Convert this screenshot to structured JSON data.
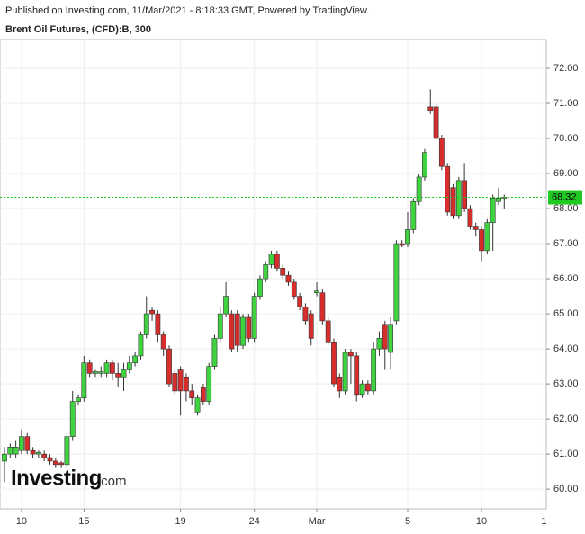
{
  "chart_data": {
    "type": "candlestick",
    "attribution": "Published on Investing.com, 11/Mar/2021 - 8:18:33 GMT, Powered by TradingView.",
    "title": "Brent Oil Futures, (CFD):B, 300",
    "watermark": "Investing",
    "watermark_suffix": ".com",
    "categories": [
      null,
      null,
      null,
      "10",
      null,
      null,
      null,
      null,
      null,
      null,
      null,
      null,
      null,
      null,
      "15",
      null,
      null,
      null,
      null,
      null,
      null,
      null,
      null,
      null,
      null,
      null,
      null,
      null,
      null,
      null,
      null,
      "19",
      null,
      null,
      null,
      null,
      null,
      null,
      null,
      null,
      null,
      null,
      null,
      null,
      "24",
      null,
      null,
      null,
      null,
      null,
      null,
      null,
      null,
      null,
      null,
      "Mar",
      null,
      null,
      null,
      null,
      null,
      null,
      null,
      null,
      null,
      null,
      null,
      null,
      null,
      null,
      null,
      "5",
      null,
      null,
      null,
      null,
      null,
      null,
      null,
      null,
      null,
      null,
      null,
      null,
      "10",
      null,
      null,
      null,
      null,
      null,
      null,
      null,
      null,
      null,
      null,
      "1"
    ],
    "open": [
      60.8,
      61.0,
      61.0,
      61.1,
      61.5,
      61.1,
      61.0,
      61.0,
      60.9,
      60.8,
      60.75,
      60.7,
      61.5,
      62.5,
      62.6,
      63.6,
      63.3,
      63.3,
      63.3,
      63.6,
      63.3,
      63.2,
      63.4,
      63.6,
      63.8,
      64.4,
      65.1,
      65.0,
      64.4,
      64.0,
      63.3,
      63.4,
      63.2,
      62.8,
      62.2,
      62.9,
      62.5,
      63.5,
      64.3,
      65.0,
      65.0,
      65.0,
      64.1,
      64.9,
      64.3,
      65.5,
      66.0,
      66.4,
      66.7,
      66.3,
      66.1,
      65.9,
      65.5,
      65.2,
      65.0,
      65.6,
      65.6,
      64.8,
      64.2,
      63.2,
      62.8,
      63.9,
      63.8,
      62.7,
      63.0,
      62.8,
      64.0,
      64.7,
      63.9,
      64.8,
      67.0,
      67.0,
      67.4,
      68.2,
      68.9,
      70.9,
      70.9,
      70.0,
      69.2,
      68.6,
      67.8,
      68.8,
      68.0,
      67.5,
      67.4,
      66.8,
      67.6,
      68.2,
      68.3,
      null,
      null,
      null,
      null,
      null,
      null,
      null
    ],
    "high": [
      61.2,
      61.3,
      61.4,
      61.7,
      61.6,
      61.2,
      61.1,
      61.1,
      61.0,
      60.9,
      60.8,
      61.6,
      62.8,
      62.7,
      63.8,
      63.7,
      63.4,
      63.5,
      63.7,
      63.7,
      63.6,
      63.6,
      63.8,
      63.9,
      64.5,
      65.5,
      65.2,
      65.1,
      64.5,
      64.1,
      63.4,
      63.5,
      63.3,
      63.0,
      62.7,
      63.0,
      63.6,
      64.4,
      65.2,
      65.9,
      65.1,
      65.1,
      65.0,
      65.0,
      65.6,
      66.1,
      66.5,
      66.8,
      66.8,
      66.4,
      66.2,
      66.0,
      65.6,
      65.3,
      65.1,
      65.9,
      65.7,
      64.9,
      64.3,
      63.3,
      64.0,
      64.0,
      63.9,
      63.1,
      63.1,
      64.2,
      64.5,
      64.8,
      64.9,
      67.1,
      67.1,
      67.9,
      68.3,
      69.0,
      69.7,
      71.4,
      71.0,
      70.1,
      69.3,
      68.7,
      68.9,
      69.3,
      68.1,
      67.6,
      67.5,
      67.7,
      68.4,
      68.6,
      68.4,
      null,
      null,
      null,
      null,
      null,
      null,
      null
    ],
    "low": [
      60.2,
      60.9,
      60.9,
      61.0,
      61.0,
      60.9,
      60.9,
      60.8,
      60.7,
      60.6,
      60.6,
      60.6,
      61.4,
      62.4,
      62.5,
      63.2,
      63.2,
      63.2,
      63.2,
      63.1,
      62.9,
      62.8,
      63.3,
      63.5,
      63.7,
      64.3,
      64.8,
      64.2,
      63.8,
      62.9,
      62.7,
      62.1,
      62.5,
      62.4,
      62.1,
      62.4,
      62.4,
      63.4,
      64.2,
      64.9,
      63.9,
      63.9,
      64.0,
      64.2,
      64.2,
      65.4,
      65.9,
      66.3,
      66.2,
      66.0,
      65.8,
      65.4,
      65.1,
      64.7,
      64.1,
      65.5,
      64.7,
      64.1,
      62.9,
      62.6,
      62.7,
      63.0,
      62.5,
      62.6,
      62.7,
      62.7,
      63.8,
      63.4,
      63.4,
      64.7,
      66.9,
      66.9,
      67.3,
      68.1,
      68.8,
      70.7,
      69.9,
      69.1,
      67.8,
      67.7,
      67.7,
      67.9,
      67.4,
      67.2,
      66.5,
      66.7,
      66.8,
      68.1,
      68.0,
      null,
      null,
      null,
      null,
      null,
      null,
      null
    ],
    "close": [
      61.0,
      61.2,
      61.2,
      61.5,
      61.1,
      61.0,
      61.05,
      60.9,
      60.8,
      60.7,
      60.7,
      61.5,
      62.5,
      62.6,
      63.6,
      63.3,
      63.35,
      63.35,
      63.6,
      63.3,
      63.2,
      63.4,
      63.6,
      63.8,
      64.4,
      65.0,
      65.0,
      64.4,
      64.0,
      63.0,
      62.8,
      62.8,
      62.8,
      62.6,
      62.6,
      62.5,
      63.5,
      64.3,
      65.0,
      65.5,
      64.0,
      64.1,
      64.9,
      64.3,
      65.5,
      66.0,
      66.4,
      66.7,
      66.3,
      66.1,
      65.9,
      65.5,
      65.2,
      64.8,
      64.3,
      65.65,
      64.8,
      64.2,
      63.0,
      62.8,
      63.9,
      63.8,
      62.7,
      63.0,
      62.8,
      64.0,
      64.3,
      64.0,
      64.7,
      67.0,
      66.95,
      67.4,
      68.2,
      68.9,
      69.6,
      70.8,
      70.0,
      69.2,
      67.9,
      67.8,
      68.8,
      68.0,
      67.5,
      67.4,
      66.8,
      67.6,
      68.3,
      68.3,
      68.32,
      null,
      null,
      null,
      null,
      null,
      null,
      null
    ],
    "up_color": "#3fd43f",
    "down_color": "#d62d2d",
    "last_price": 68.32,
    "last_price_color": "#22c922",
    "ylim": [
      59.44,
      72.82
    ],
    "yticks": [
      {
        "value": 60,
        "label": "60.00"
      },
      {
        "value": 61,
        "label": "61.00"
      },
      {
        "value": 62,
        "label": "62.00"
      },
      {
        "value": 63,
        "label": "63.00"
      },
      {
        "value": 64,
        "label": "64.00"
      },
      {
        "value": 65,
        "label": "65.00"
      },
      {
        "value": 66,
        "label": "66.00"
      },
      {
        "value": 67,
        "label": "67.00"
      },
      {
        "value": 68,
        "label": "68.00"
      },
      {
        "value": 69,
        "label": "69.00"
      },
      {
        "value": 70,
        "label": "70.00"
      },
      {
        "value": 71,
        "label": "71.00"
      },
      {
        "value": 72,
        "label": "72.00"
      }
    ],
    "grid": true
  }
}
